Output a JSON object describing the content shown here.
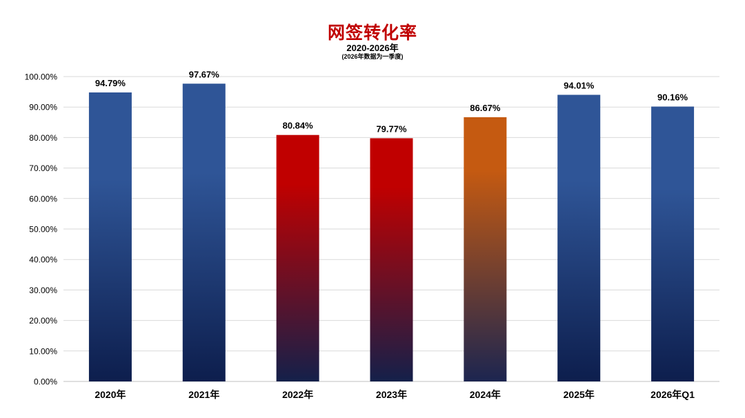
{
  "chart_data": {
    "type": "bar",
    "title": "网签转化率",
    "subtitle": "2020-2026年",
    "note": "(2026年数据为一季度)",
    "xlabel": "",
    "ylabel": "",
    "categories": [
      "2020年",
      "2021年",
      "2022年",
      "2023年",
      "2024年",
      "2025年",
      "2026年Q1"
    ],
    "values": [
      94.79,
      97.67,
      80.84,
      79.77,
      86.67,
      94.01,
      90.16
    ],
    "value_labels": [
      "94.79%",
      "97.67%",
      "80.84%",
      "79.77%",
      "86.67%",
      "94.01%",
      "90.16%"
    ],
    "y_ticks": [
      0,
      10,
      20,
      30,
      40,
      50,
      60,
      70,
      80,
      90,
      100
    ],
    "y_tick_labels": [
      "0.00%",
      "10.00%",
      "20.00%",
      "30.00%",
      "40.00%",
      "50.00%",
      "60.00%",
      "70.00%",
      "80.00%",
      "90.00%",
      "100.00%"
    ],
    "ylim": [
      0,
      100
    ],
    "grid": true,
    "legend": "none",
    "bar_styles": [
      "blue",
      "blue",
      "red",
      "red",
      "orange",
      "blue",
      "blue"
    ],
    "colors": {
      "blue_top": "#2f5597",
      "blue_bottom": "#0d1e4d",
      "red_top": "#c00000",
      "red_bottom": "#14204a",
      "orange_top": "#c55a11",
      "orange_bottom": "#1c2550",
      "gridline": "#d9d9d9",
      "axis": "#bfbfbf",
      "title": "#c00000"
    }
  }
}
